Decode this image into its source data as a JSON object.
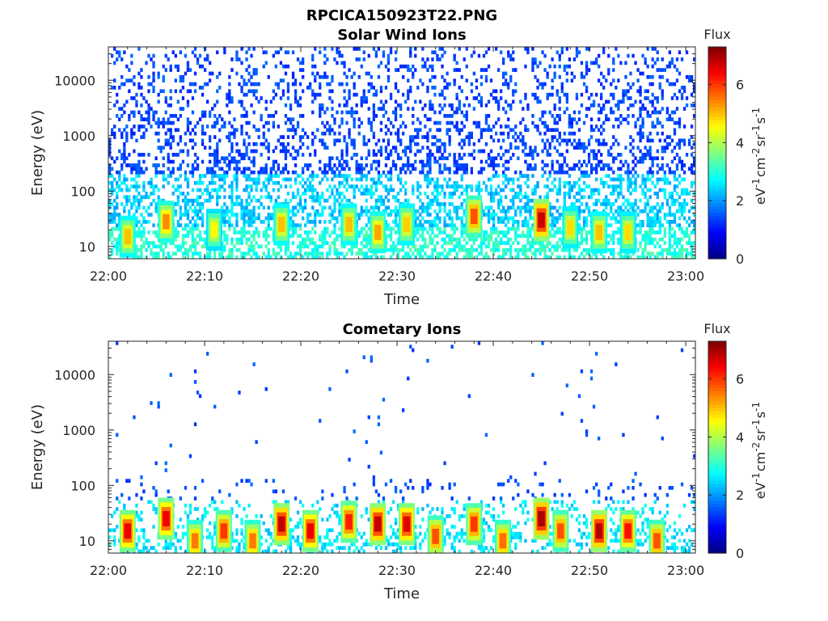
{
  "figure_title": "RPCICA150923T22.PNG",
  "colors": {
    "axis": "#262626",
    "background": "#ffffff",
    "empty_cell": "#ffffff"
  },
  "chart_data": [
    {
      "type": "heatmap",
      "title": "Solar Wind Ions",
      "xlabel": "Time",
      "ylabel": "Energy (eV)",
      "x_ticks": [
        "22:00",
        "22:10",
        "22:20",
        "22:30",
        "22:40",
        "22:50",
        "23:00"
      ],
      "x_range": [
        "22:00",
        "23:01"
      ],
      "y_scale": "log",
      "y_ticks": [
        "10",
        "100",
        "1000",
        "10000"
      ],
      "y_range": [
        6,
        40000
      ],
      "colorbar": {
        "label": "Flux",
        "unit": "eV⁻¹cm⁻²sr⁻¹s⁻¹",
        "unit_base": [
          "eV",
          "cm",
          "sr",
          "s"
        ],
        "unit_exp": [
          "-1",
          "-2",
          "-1",
          "-1"
        ],
        "range": [
          0,
          7.3
        ],
        "ticks": [
          "0",
          "2",
          "4",
          "6"
        ],
        "colormap": "jet"
      },
      "hotspots": [
        {
          "time": "22:02",
          "energy": 15,
          "flux": 5.0
        },
        {
          "time": "22:06",
          "energy": 28,
          "flux": 5.4
        },
        {
          "time": "22:11",
          "energy": 20,
          "flux": 4.6
        },
        {
          "time": "22:18",
          "energy": 25,
          "flux": 5.0
        },
        {
          "time": "22:25",
          "energy": 25,
          "flux": 5.0
        },
        {
          "time": "22:28",
          "energy": 18,
          "flux": 5.2
        },
        {
          "time": "22:31",
          "energy": 25,
          "flux": 4.9
        },
        {
          "time": "22:38",
          "energy": 35,
          "flux": 5.8
        },
        {
          "time": "22:45",
          "energy": 30,
          "flux": 6.8
        },
        {
          "time": "22:48",
          "energy": 22,
          "flux": 4.8
        },
        {
          "time": "22:51",
          "energy": 18,
          "flux": 5.0
        },
        {
          "time": "22:54",
          "energy": 18,
          "flux": 4.8
        }
      ]
    },
    {
      "type": "heatmap",
      "title": "Cometary Ions",
      "xlabel": "Time",
      "ylabel": "Energy (eV)",
      "x_ticks": [
        "22:00",
        "22:10",
        "22:20",
        "22:30",
        "22:40",
        "22:50",
        "23:00"
      ],
      "x_range": [
        "22:00",
        "23:01"
      ],
      "y_scale": "log",
      "y_ticks": [
        "10",
        "100",
        "1000",
        "10000"
      ],
      "y_range": [
        6,
        40000
      ],
      "colorbar": {
        "label": "Flux",
        "unit": "eV⁻¹cm⁻²sr⁻¹s⁻¹",
        "unit_base": [
          "eV",
          "cm",
          "sr",
          "s"
        ],
        "unit_exp": [
          "-1",
          "-2",
          "-1",
          "-1"
        ],
        "range": [
          0,
          7.3
        ],
        "ticks": [
          "0",
          "2",
          "4",
          "6"
        ],
        "colormap": "jet"
      },
      "hotspots": [
        {
          "time": "22:02",
          "energy": 15,
          "flux": 6.5
        },
        {
          "time": "22:06",
          "energy": 25,
          "flux": 6.5
        },
        {
          "time": "22:09",
          "energy": 10,
          "flux": 5.5
        },
        {
          "time": "22:12",
          "energy": 15,
          "flux": 6.0
        },
        {
          "time": "22:15",
          "energy": 10,
          "flux": 5.5
        },
        {
          "time": "22:18",
          "energy": 20,
          "flux": 6.8
        },
        {
          "time": "22:21",
          "energy": 15,
          "flux": 6.5
        },
        {
          "time": "22:25",
          "energy": 22,
          "flux": 6.2
        },
        {
          "time": "22:28",
          "energy": 20,
          "flux": 6.8
        },
        {
          "time": "22:31",
          "energy": 20,
          "flux": 6.6
        },
        {
          "time": "22:34",
          "energy": 12,
          "flux": 5.8
        },
        {
          "time": "22:38",
          "energy": 20,
          "flux": 6.0
        },
        {
          "time": "22:41",
          "energy": 10,
          "flux": 5.6
        },
        {
          "time": "22:45",
          "energy": 25,
          "flux": 7.0
        },
        {
          "time": "22:47",
          "energy": 15,
          "flux": 5.8
        },
        {
          "time": "22:51",
          "energy": 15,
          "flux": 6.9
        },
        {
          "time": "22:54",
          "energy": 15,
          "flux": 6.3
        },
        {
          "time": "22:57",
          "energy": 10,
          "flux": 5.8
        }
      ]
    }
  ]
}
